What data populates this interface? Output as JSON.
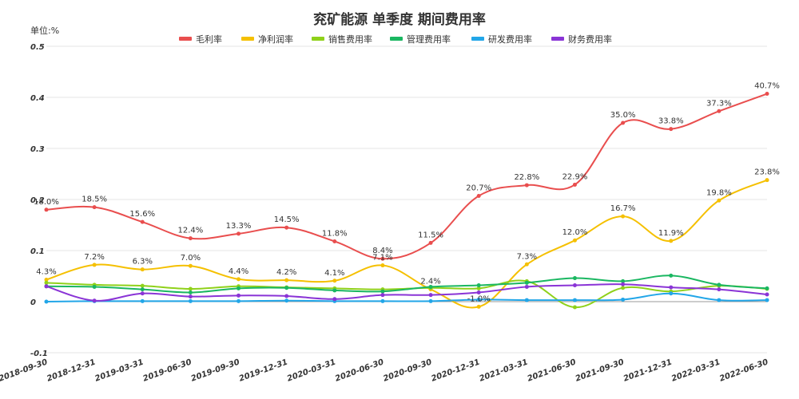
{
  "chart_data": {
    "type": "line",
    "title": "兖矿能源 单季度 期间费用率",
    "unit_label": "单位:%",
    "ylim": [
      -0.1,
      0.5
    ],
    "yticks": [
      "-0.1",
      "0",
      "0.1",
      "0.2",
      "0.3",
      "0.4",
      "0.5"
    ],
    "ytick_values": [
      -0.1,
      0,
      0.1,
      0.2,
      0.3,
      0.4,
      0.5
    ],
    "grid": true,
    "legend_position": "top-center",
    "categories": [
      "2018-09-30",
      "2018-12-31",
      "2019-03-31",
      "2019-06-30",
      "2019-09-30",
      "2019-12-31",
      "2020-03-31",
      "2020-06-30",
      "2020-09-30",
      "2020-12-31",
      "2021-03-31",
      "2021-06-30",
      "2021-09-30",
      "2021-12-31",
      "2022-03-31",
      "2022-06-30"
    ],
    "series": [
      {
        "name": "毛利率",
        "color": "#e94e4e",
        "values": [
          0.18,
          0.185,
          0.156,
          0.124,
          0.133,
          0.145,
          0.118,
          0.084,
          0.115,
          0.207,
          0.228,
          0.229,
          0.35,
          0.338,
          0.373,
          0.407
        ],
        "labels": [
          "18.0%",
          "18.5%",
          "15.6%",
          "12.4%",
          "13.3%",
          "14.5%",
          "11.8%",
          "8.4%",
          "11.5%",
          "20.7%",
          "22.8%",
          "22.9%",
          "35.0%",
          "33.8%",
          "37.3%",
          "40.7%"
        ]
      },
      {
        "name": "净利润率",
        "color": "#f5c000",
        "values": [
          0.043,
          0.072,
          0.063,
          0.07,
          0.044,
          0.042,
          0.041,
          0.071,
          0.024,
          -0.01,
          0.073,
          0.12,
          0.167,
          0.119,
          0.198,
          0.238
        ],
        "labels": [
          "4.3%",
          "7.2%",
          "6.3%",
          "7.0%",
          "4.4%",
          "4.2%",
          "4.1%",
          "7.1%",
          "2.4%",
          "-1.0%",
          "7.3%",
          "12.0%",
          "16.7%",
          "11.9%",
          "19.8%",
          "23.8%"
        ]
      },
      {
        "name": "销售费用率",
        "color": "#8fd11a",
        "values": [
          0.037,
          0.033,
          0.031,
          0.025,
          0.03,
          0.028,
          0.026,
          0.024,
          0.027,
          0.026,
          0.04,
          -0.011,
          0.027,
          0.02,
          0.031,
          0.025
        ]
      },
      {
        "name": "管理费用率",
        "color": "#1ab761",
        "values": [
          0.03,
          0.029,
          0.024,
          0.018,
          0.026,
          0.027,
          0.022,
          0.02,
          0.029,
          0.032,
          0.037,
          0.046,
          0.04,
          0.051,
          0.033,
          0.026
        ]
      },
      {
        "name": "研发费用率",
        "color": "#22a6e8",
        "values": [
          0.0,
          0.001,
          0.001,
          0.001,
          0.001,
          0.002,
          0.001,
          0.001,
          0.001,
          0.004,
          0.003,
          0.003,
          0.004,
          0.016,
          0.003,
          0.003
        ]
      },
      {
        "name": "财务费用率",
        "color": "#8a34d6",
        "values": [
          0.03,
          0.002,
          0.016,
          0.01,
          0.012,
          0.011,
          0.005,
          0.013,
          0.013,
          0.018,
          0.029,
          0.032,
          0.034,
          0.028,
          0.024,
          0.014
        ]
      }
    ]
  }
}
